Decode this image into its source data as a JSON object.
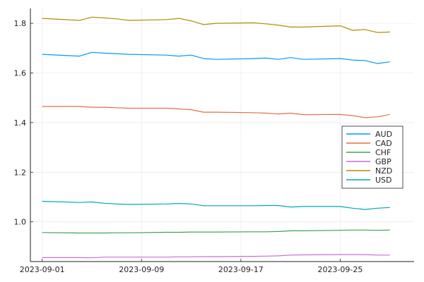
{
  "chart_data": {
    "type": "line",
    "title": "",
    "xlabel": "",
    "ylabel": "",
    "xlim": [
      "2023-09-01",
      "2023-09-30"
    ],
    "ylim": [
      0.84,
      1.86
    ],
    "grid": true,
    "legend_position": "right",
    "x_ticks": [
      "2023-09-01",
      "2023-09-09",
      "2023-09-17",
      "2023-09-25"
    ],
    "y_ticks": [
      "1.0",
      "1.2",
      "1.4",
      "1.6",
      "1.8"
    ],
    "x": [
      "2023-09-01",
      "2023-09-04",
      "2023-09-05",
      "2023-09-06",
      "2023-09-07",
      "2023-09-08",
      "2023-09-11",
      "2023-09-12",
      "2023-09-13",
      "2023-09-14",
      "2023-09-15",
      "2023-09-18",
      "2023-09-19",
      "2023-09-20",
      "2023-09-21",
      "2023-09-22",
      "2023-09-25",
      "2023-09-26",
      "2023-09-27",
      "2023-09-28",
      "2023-09-29"
    ],
    "series": [
      {
        "name": "AUD",
        "color": "#009AFA",
        "values": [
          1.675,
          1.668,
          1.683,
          1.68,
          1.678,
          1.675,
          1.672,
          1.668,
          1.672,
          1.658,
          1.655,
          1.658,
          1.66,
          1.655,
          1.662,
          1.655,
          1.658,
          1.652,
          1.65,
          1.638,
          1.645
        ]
      },
      {
        "name": "CAD",
        "color": "#E26F46",
        "values": [
          1.465,
          1.465,
          1.462,
          1.462,
          1.46,
          1.458,
          1.458,
          1.455,
          1.452,
          1.442,
          1.442,
          1.44,
          1.438,
          1.435,
          1.438,
          1.432,
          1.433,
          1.428,
          1.42,
          1.423,
          1.433
        ]
      },
      {
        "name": "CHF",
        "color": "#3DA44D",
        "values": [
          0.957,
          0.955,
          0.955,
          0.955,
          0.956,
          0.956,
          0.958,
          0.958,
          0.959,
          0.959,
          0.959,
          0.96,
          0.96,
          0.961,
          0.964,
          0.964,
          0.966,
          0.967,
          0.967,
          0.966,
          0.967
        ]
      },
      {
        "name": "GBP",
        "color": "#C270D6",
        "values": [
          0.856,
          0.856,
          0.855,
          0.858,
          0.858,
          0.858,
          0.858,
          0.859,
          0.859,
          0.86,
          0.86,
          0.861,
          0.862,
          0.863,
          0.866,
          0.867,
          0.868,
          0.868,
          0.868,
          0.866,
          0.866
        ]
      },
      {
        "name": "NZD",
        "color": "#AD8F00",
        "values": [
          1.82,
          1.812,
          1.825,
          1.822,
          1.818,
          1.812,
          1.815,
          1.82,
          1.81,
          1.795,
          1.8,
          1.802,
          1.798,
          1.793,
          1.785,
          1.785,
          1.79,
          1.772,
          1.775,
          1.763,
          1.765
        ]
      },
      {
        "name": "USD",
        "color": "#00A9AD",
        "values": [
          1.083,
          1.078,
          1.08,
          1.075,
          1.072,
          1.07,
          1.072,
          1.074,
          1.072,
          1.065,
          1.065,
          1.065,
          1.066,
          1.066,
          1.06,
          1.062,
          1.062,
          1.055,
          1.05,
          1.055,
          1.058
        ]
      }
    ]
  }
}
